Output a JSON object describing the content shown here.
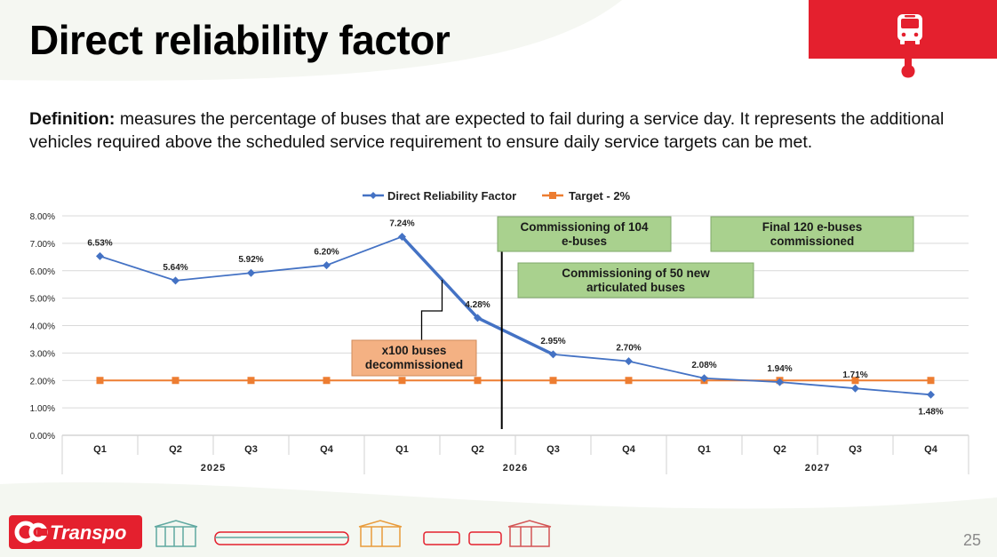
{
  "page": {
    "title": "Direct reliability factor",
    "definition_label": "Definition:",
    "definition_text": " measures the percentage of buses that are expected to fail during a service day. It represents the additional vehicles required above the scheduled service requirement to ensure daily service targets can be met.",
    "page_number": "25",
    "logo_text": "Transpo",
    "colors": {
      "brand_red": "#e4202e",
      "series_blue": "#4472c4",
      "series_orange": "#ed7d31",
      "annotation_green": "#a9d18e",
      "annotation_orange": "#f4b183"
    }
  },
  "chart_data": {
    "type": "line",
    "title": "",
    "xlabel": "",
    "ylabel": "",
    "legend_position": "top-center",
    "grid": true,
    "ylim": [
      0,
      0.08
    ],
    "yticks": [
      "0.00%",
      "1.00%",
      "2.00%",
      "3.00%",
      "4.00%",
      "5.00%",
      "6.00%",
      "7.00%",
      "8.00%"
    ],
    "categories": [
      "Q1",
      "Q2",
      "Q3",
      "Q4",
      "Q1",
      "Q2",
      "Q3",
      "Q4",
      "Q1",
      "Q2",
      "Q3",
      "Q4"
    ],
    "groups": [
      {
        "label": "2025",
        "span": 4
      },
      {
        "label": "2026",
        "span": 4
      },
      {
        "label": "2027",
        "span": 4
      }
    ],
    "series": [
      {
        "name": "Direct Reliability Factor",
        "color": "#4472c4",
        "marker": "diamond",
        "values": [
          0.0653,
          0.0564,
          0.0592,
          0.062,
          0.0724,
          0.0428,
          0.0295,
          0.027,
          0.0208,
          0.0194,
          0.0171,
          0.0148
        ],
        "labels": [
          "6.53%",
          "5.64%",
          "5.92%",
          "6.20%",
          "7.24%",
          "4.28%",
          "2.95%",
          "2.70%",
          "2.08%",
          "1.94%",
          "1.71%",
          "1.48%"
        ]
      },
      {
        "name": "Target - 2%",
        "color": "#ed7d31",
        "marker": "square",
        "values": [
          0.02,
          0.02,
          0.02,
          0.02,
          0.02,
          0.02,
          0.02,
          0.02,
          0.02,
          0.02,
          0.02,
          0.02
        ]
      }
    ],
    "annotations": [
      {
        "text_lines": [
          "Commissioning of 104",
          "e-buses"
        ],
        "style": "green"
      },
      {
        "text_lines": [
          "Final 120 e-buses",
          "commissioned"
        ],
        "style": "green"
      },
      {
        "text_lines": [
          "Commissioning of 50 new",
          "articulated buses"
        ],
        "style": "green"
      },
      {
        "text_lines": [
          "x100 buses",
          "decommissioned"
        ],
        "style": "orange"
      }
    ]
  }
}
